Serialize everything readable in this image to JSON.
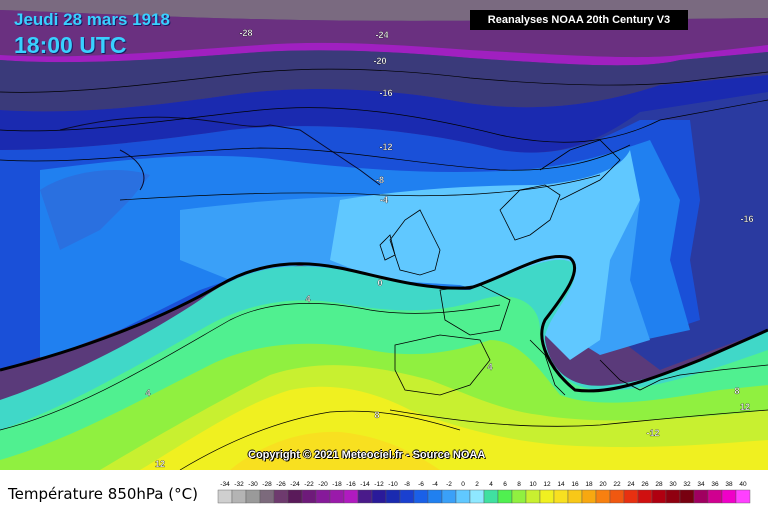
{
  "header": {
    "date": "Jeudi 28 mars 1918",
    "time": "18:00 UTC"
  },
  "source_label": "Reanalyses NOAA 20th Century V3",
  "copyright": "Copyright © 2021 Meteociel.fr - Source NOAA",
  "legend": {
    "title": "Température 850hPa (°C)",
    "ticks": [
      "-34",
      "-32",
      "-30",
      "-28",
      "-26",
      "-24",
      "-22",
      "-20",
      "-18",
      "-16",
      "-14",
      "-12",
      "-10",
      "-8",
      "-6",
      "-4",
      "-2",
      "0",
      "2",
      "4",
      "6",
      "8",
      "10",
      "12",
      "14",
      "16",
      "18",
      "20",
      "22",
      "24",
      "26",
      "28",
      "30",
      "32",
      "34",
      "36",
      "38",
      "40"
    ],
    "colors": [
      "#cfcfcf",
      "#b4b4b4",
      "#9a9a9a",
      "#7c6a7c",
      "#6e3a6e",
      "#5a1a5a",
      "#6e1a7a",
      "#861a9a",
      "#9a1aaa",
      "#b01ac0",
      "#4a1a8a",
      "#2a1a9a",
      "#1a2ab0",
      "#1a40d0",
      "#1a60e8",
      "#2080f0",
      "#3aa0f8",
      "#60c8ff",
      "#8ee8ff",
      "#40e0a0",
      "#50f050",
      "#90f040",
      "#c8f030",
      "#f0f020",
      "#f8e020",
      "#f8c818",
      "#f8a810",
      "#f88010",
      "#f05810",
      "#e83010",
      "#d01010",
      "#b00010",
      "#900010",
      "#780010",
      "#a00060",
      "#d00090",
      "#f000c8",
      "#ff40ff"
    ]
  },
  "contour_labels": [
    "-28",
    "-24",
    "-20",
    "-16",
    "-12",
    "-8",
    "-4",
    "0",
    "4",
    "4",
    "8",
    "12",
    "-12",
    "-16",
    "8",
    "4",
    "12"
  ]
}
